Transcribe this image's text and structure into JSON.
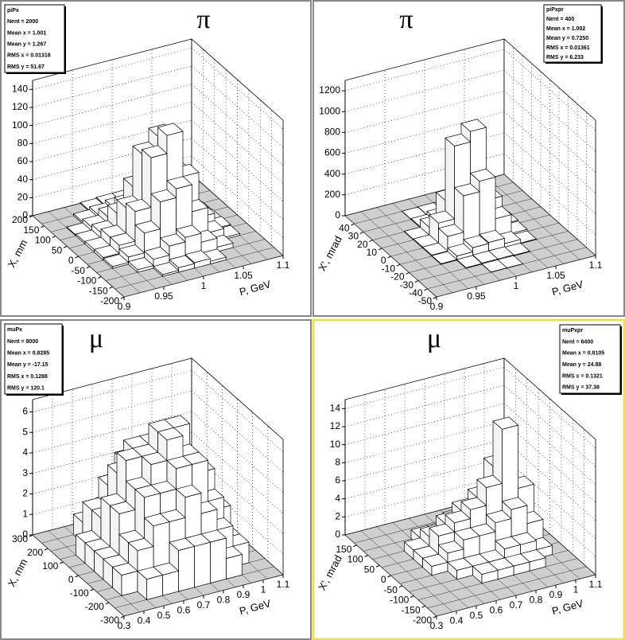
{
  "chart_data": [
    {
      "type": "lego",
      "title": "π",
      "xlabel": "P, GeV",
      "ylabel": "X, mm",
      "stats": [
        "piPx",
        "Nent = 2000",
        "Mean x = 1.001",
        "Mean y = 1.267",
        "RMS x = 0.01318",
        "RMS y = 51.67"
      ],
      "xlim": [
        0.9,
        1.1
      ],
      "xticks": [
        0.9,
        0.95,
        1,
        1.05,
        1.1
      ],
      "ylim": [
        -200,
        200
      ],
      "yticks": [
        -200,
        -150,
        -100,
        -50,
        0,
        50,
        100,
        150,
        200
      ],
      "zlim": [
        0,
        150
      ],
      "zticks": [
        0,
        20,
        40,
        60,
        80,
        100,
        120,
        140
      ],
      "values": [
        [
          0,
          0,
          0,
          0,
          0,
          0,
          0,
          0,
          0,
          0
        ],
        [
          0,
          0,
          0,
          2,
          5,
          6,
          3,
          0,
          0,
          0
        ],
        [
          0,
          0,
          3,
          10,
          20,
          25,
          15,
          5,
          0,
          0
        ],
        [
          0,
          2,
          8,
          30,
          60,
          70,
          40,
          12,
          2,
          0
        ],
        [
          0,
          3,
          12,
          45,
          100,
          120,
          70,
          20,
          3,
          0
        ],
        [
          0,
          3,
          12,
          40,
          95,
          110,
          65,
          18,
          2,
          0
        ],
        [
          0,
          2,
          8,
          25,
          50,
          55,
          35,
          10,
          1,
          0
        ],
        [
          0,
          1,
          5,
          12,
          20,
          22,
          12,
          4,
          0,
          0
        ],
        [
          0,
          0,
          2,
          5,
          8,
          8,
          5,
          1,
          0,
          0
        ],
        [
          0,
          0,
          0,
          1,
          2,
          2,
          1,
          0,
          0,
          0
        ]
      ]
    },
    {
      "type": "lego",
      "title": "π",
      "xlabel": "P, GeV",
      "ylabel": "X', mrad",
      "stats": [
        "piPxpr",
        "Nent = 400",
        "Mean x = 1.002",
        "Mean y = 0.7250",
        "RMS x = 0.01361",
        "RMS y = 6.233"
      ],
      "xlim": [
        0.9,
        1.1
      ],
      "xticks": [
        0.9,
        0.95,
        1,
        1.05,
        1.1
      ],
      "ylim": [
        -50,
        50
      ],
      "yticks": [
        -50,
        -40,
        -30,
        -20,
        -10,
        0,
        10,
        20,
        30,
        40
      ],
      "zlim": [
        0,
        1300
      ],
      "zticks": [
        0,
        200,
        400,
        600,
        800,
        1000,
        1200
      ],
      "values": [
        [
          0,
          0,
          0,
          0,
          0,
          0,
          0,
          0,
          0,
          0
        ],
        [
          0,
          0,
          0,
          0,
          2,
          2,
          0,
          0,
          0,
          0
        ],
        [
          0,
          0,
          0,
          5,
          10,
          10,
          5,
          0,
          0,
          0
        ],
        [
          0,
          0,
          5,
          40,
          80,
          90,
          40,
          5,
          0,
          0
        ],
        [
          0,
          0,
          10,
          150,
          500,
          600,
          200,
          20,
          0,
          0
        ],
        [
          0,
          0,
          10,
          200,
          900,
          1000,
          300,
          30,
          0,
          0
        ],
        [
          0,
          0,
          5,
          80,
          300,
          350,
          100,
          10,
          0,
          0
        ],
        [
          0,
          0,
          0,
          10,
          40,
          50,
          15,
          0,
          0,
          0
        ],
        [
          0,
          0,
          0,
          2,
          5,
          5,
          2,
          0,
          0,
          0
        ],
        [
          0,
          0,
          0,
          0,
          0,
          0,
          0,
          0,
          0,
          0
        ]
      ]
    },
    {
      "type": "lego",
      "title": "μ",
      "xlabel": "P, GeV",
      "ylabel": "X, mm",
      "stats": [
        "muPx",
        "Nent = 8000",
        "Mean x = 0.8285",
        "Mean y = -17.15",
        "RMS x = 0.1288",
        "RMS y = 120.1"
      ],
      "xlim": [
        0.3,
        1.1
      ],
      "xticks": [
        0.3,
        0.4,
        0.5,
        0.6,
        0.7,
        0.8,
        0.9,
        1,
        1.1
      ],
      "ylim": [
        -300,
        300
      ],
      "yticks": [
        -300,
        -200,
        -100,
        0,
        100,
        200,
        300
      ],
      "zlim": [
        0,
        6.6
      ],
      "zticks": [
        0,
        1,
        2,
        3,
        4,
        5,
        6
      ],
      "values": [
        [
          0,
          0,
          0,
          0,
          0,
          0,
          0,
          0,
          0,
          0
        ],
        [
          0,
          0,
          1,
          1,
          2,
          2,
          2,
          1,
          0,
          0
        ],
        [
          0,
          1,
          2,
          3,
          3,
          4,
          3,
          2,
          1,
          0
        ],
        [
          0,
          1,
          2,
          4,
          4,
          5,
          5,
          3,
          1,
          0
        ],
        [
          0,
          1,
          3,
          4,
          5,
          6,
          5,
          4,
          2,
          0
        ],
        [
          0,
          1,
          3,
          5,
          5,
          6,
          6,
          4,
          2,
          0
        ],
        [
          0,
          1,
          2,
          4,
          5,
          5,
          4,
          3,
          1,
          0
        ],
        [
          0,
          0,
          2,
          3,
          4,
          4,
          3,
          2,
          1,
          0
        ],
        [
          0,
          0,
          1,
          1,
          2,
          2,
          2,
          1,
          0,
          0
        ],
        [
          0,
          0,
          0,
          0,
          1,
          1,
          0,
          0,
          0,
          0
        ]
      ]
    },
    {
      "type": "lego",
      "title": "μ",
      "xlabel": "P, GeV",
      "ylabel": "X', mrad",
      "stats": [
        "muPxpr",
        "Nent = 6400",
        "Mean x = 0.8105",
        "Mean y = 24.88",
        "RMS x = 0.1321",
        "RMS y = 37.38"
      ],
      "xlim": [
        0.3,
        1.1
      ],
      "xticks": [
        0.3,
        0.4,
        0.5,
        0.6,
        0.7,
        0.8,
        0.9,
        1,
        1.1
      ],
      "ylim": [
        -200,
        200
      ],
      "yticks": [
        -200,
        -150,
        -100,
        -50,
        0,
        50,
        100,
        150
      ],
      "zlim": [
        0,
        15
      ],
      "zticks": [
        0,
        2,
        4,
        6,
        8,
        10,
        12,
        14
      ],
      "values": [
        [
          0,
          0,
          0,
          0,
          0,
          0,
          0,
          0,
          0,
          0
        ],
        [
          0,
          0,
          0,
          0,
          0,
          0,
          0,
          0,
          0,
          0
        ],
        [
          0,
          0,
          0,
          0,
          1,
          1,
          1,
          1,
          0,
          0
        ],
        [
          0,
          0,
          0,
          1,
          1,
          1,
          2,
          2,
          1,
          0
        ],
        [
          0,
          0,
          1,
          2,
          3,
          3,
          4,
          5,
          3,
          0
        ],
        [
          0,
          0,
          1,
          3,
          4,
          5,
          7,
          13,
          6,
          0
        ],
        [
          0,
          0,
          1,
          2,
          3,
          4,
          5,
          8,
          4,
          0
        ],
        [
          0,
          0,
          0,
          1,
          1,
          2,
          2,
          3,
          1,
          0
        ],
        [
          0,
          0,
          0,
          0,
          0,
          0,
          0,
          0,
          0,
          0
        ],
        [
          0,
          0,
          0,
          0,
          0,
          0,
          0,
          0,
          0,
          0
        ]
      ]
    }
  ]
}
